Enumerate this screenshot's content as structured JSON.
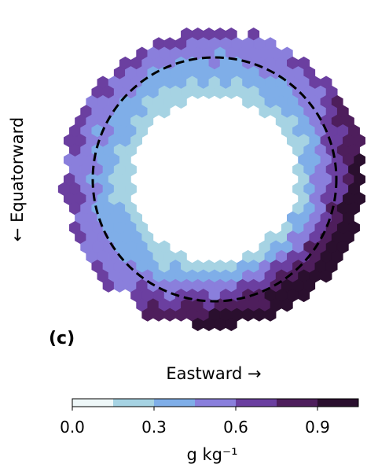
{
  "chart_data": {
    "type": "heatmap",
    "panel_label": "(c)",
    "xlabel": "Eastward →",
    "ylabel": "← Equatorward",
    "colorbar": {
      "label": "g kg⁻¹",
      "range": [
        0.0,
        1.05
      ],
      "ticks": [
        0.0,
        0.3,
        0.6,
        0.9
      ],
      "tick_labels": [
        "0.0",
        "0.3",
        "0.6",
        "0.9"
      ],
      "bins": [
        {
          "from": 0.0,
          "to": 0.15,
          "color": "#eef7f8"
        },
        {
          "from": 0.15,
          "to": 0.3,
          "color": "#a6d3e3"
        },
        {
          "from": 0.3,
          "to": 0.45,
          "color": "#7faee8"
        },
        {
          "from": 0.45,
          "to": 0.6,
          "color": "#8a7fdc"
        },
        {
          "from": 0.6,
          "to": 0.75,
          "color": "#6b3fa0"
        },
        {
          "from": 0.75,
          "to": 0.9,
          "color": "#4e1e5c"
        },
        {
          "from": 0.9,
          "to": 1.05,
          "color": "#2a0f2e"
        }
      ]
    },
    "annulus": {
      "inner_radius": 0.55,
      "outer_radius": 1.0,
      "reference_circle_radius": 0.82,
      "reference_circle_style": "dashed"
    },
    "field_model": {
      "description_values_by_region": [
        {
          "region": "inner ring (equatorward/westward side)",
          "approx_value": 0.22
        },
        {
          "region": "middle ring",
          "approx_value": 0.4
        },
        {
          "region": "outer ring west/north",
          "approx_value": 0.55
        },
        {
          "region": "outer ring south-east",
          "approx_value": 0.95
        }
      ]
    }
  }
}
